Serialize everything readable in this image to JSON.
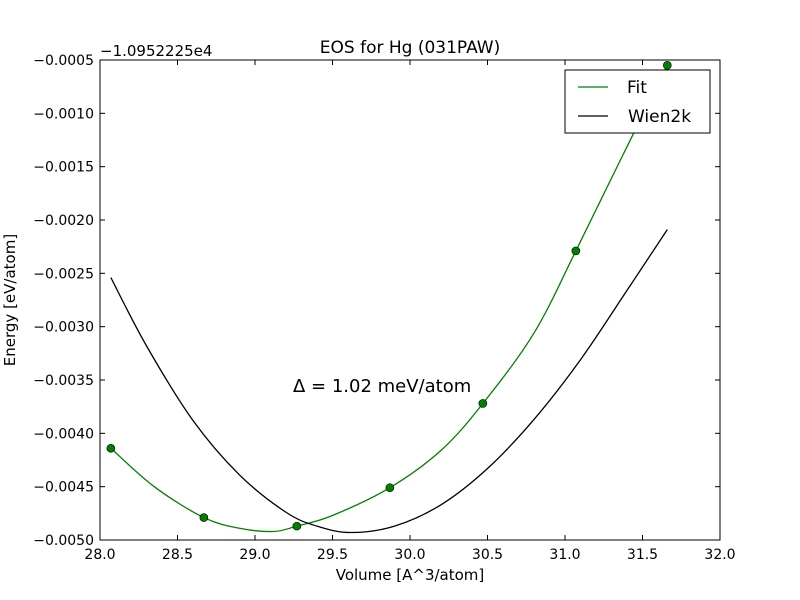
{
  "chart_data": {
    "type": "line",
    "title": "EOS for Hg (031PAW)",
    "xlabel": "Volume [A^3/atom]",
    "ylabel": "Energy [eV/atom]",
    "offset_label": "−1.0952225e4",
    "xlim": [
      28.0,
      32.0
    ],
    "ylim": [
      -0.005,
      -0.0005
    ],
    "x_ticks": [
      28.0,
      28.5,
      29.0,
      29.5,
      30.0,
      30.5,
      31.0,
      31.5,
      32.0
    ],
    "x_tick_labels": [
      "28.0",
      "28.5",
      "29.0",
      "29.5",
      "30.0",
      "30.5",
      "31.0",
      "31.5",
      "32.0"
    ],
    "y_ticks": [
      -0.005,
      -0.0045,
      -0.004,
      -0.0035,
      -0.003,
      -0.0025,
      -0.002,
      -0.0015,
      -0.001,
      -0.0005
    ],
    "y_tick_labels": [
      "−0.0050",
      "−0.0045",
      "−0.0040",
      "−0.0035",
      "−0.0030",
      "−0.0025",
      "−0.0020",
      "−0.0015",
      "−0.0010",
      "−0.0005"
    ],
    "grid": false,
    "legend_position": "top-right",
    "annotation": "Δ = 1.02 meV/atom",
    "data_points": {
      "color": "#008000",
      "x": [
        28.07,
        28.67,
        29.27,
        29.87,
        30.47,
        31.07,
        31.66
      ],
      "y": [
        -0.00414,
        -0.00479,
        -0.00487,
        -0.00451,
        -0.00372,
        -0.00229,
        -0.00055
      ]
    },
    "series": [
      {
        "name": "Fit",
        "color": "#008000",
        "x": [
          28.07,
          28.35,
          28.67,
          28.9,
          29.12,
          29.27,
          29.5,
          29.87,
          30.2,
          30.47,
          30.8,
          31.07,
          31.35,
          31.66
        ],
        "y": [
          -0.00414,
          -0.0045,
          -0.00479,
          -0.00489,
          -0.00492,
          -0.00487,
          -0.00477,
          -0.00451,
          -0.00416,
          -0.00372,
          -0.00306,
          -0.00229,
          -0.00146,
          -0.00055
        ]
      },
      {
        "name": "Wien2k",
        "color": "#000000",
        "x": [
          28.07,
          28.3,
          28.6,
          28.9,
          29.2,
          29.4,
          29.62,
          29.9,
          30.2,
          30.5,
          30.8,
          31.1,
          31.4,
          31.66
        ],
        "y": [
          -0.00254,
          -0.00318,
          -0.00388,
          -0.00439,
          -0.00474,
          -0.00487,
          -0.00493,
          -0.00487,
          -0.00467,
          -0.00433,
          -0.00387,
          -0.00331,
          -0.00266,
          -0.00209
        ]
      }
    ]
  }
}
